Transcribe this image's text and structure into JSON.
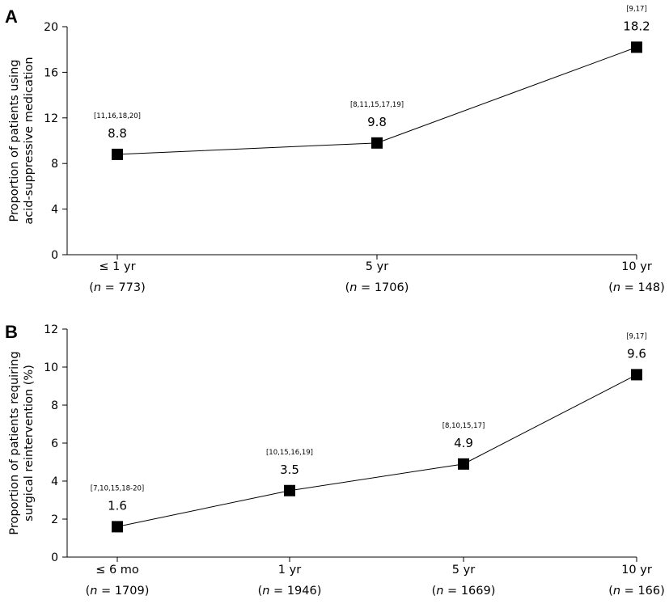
{
  "chart_data": [
    {
      "type": "line",
      "panel": "A",
      "ylabel_lines": [
        "Proportion of patients using",
        "acid-suppressive medication"
      ],
      "ylim": [
        0,
        20
      ],
      "yticks": [
        "0",
        "4",
        "8",
        "12",
        "16",
        "20"
      ],
      "categories": [
        "≤ 1 yr",
        "5 yr",
        "10 yr"
      ],
      "n_values": [
        "773",
        "1706",
        "148"
      ],
      "series": [
        {
          "values": [
            8.8,
            9.8,
            18.2
          ]
        }
      ],
      "value_labels": [
        "8.8",
        "9.8",
        "18.2"
      ],
      "references": [
        "[11,16,18,20]",
        "[8,11,15,17,19]",
        "[9,17]"
      ]
    },
    {
      "type": "line",
      "panel": "B",
      "ylabel_lines": [
        "Proportion of patients requiring",
        "surgical reintervention (%)"
      ],
      "ylim": [
        0,
        12
      ],
      "yticks": [
        "0",
        "2",
        "4",
        "6",
        "8",
        "10",
        "12"
      ],
      "categories": [
        "≤ 6 mo",
        "1 yr",
        "5 yr",
        "10 yr"
      ],
      "n_values": [
        "1709",
        "1946",
        "1669",
        "166"
      ],
      "series": [
        {
          "values": [
            1.6,
            3.5,
            4.9,
            9.6
          ]
        }
      ],
      "value_labels": [
        "1.6",
        "3.5",
        "4.9",
        "9.6"
      ],
      "references": [
        "[7,10,15,18-20]",
        "[10,15,16,19]",
        "[8,10,15,17]",
        "[9,17]"
      ]
    }
  ],
  "colors": {
    "line": "#000000",
    "marker": "#000000"
  }
}
